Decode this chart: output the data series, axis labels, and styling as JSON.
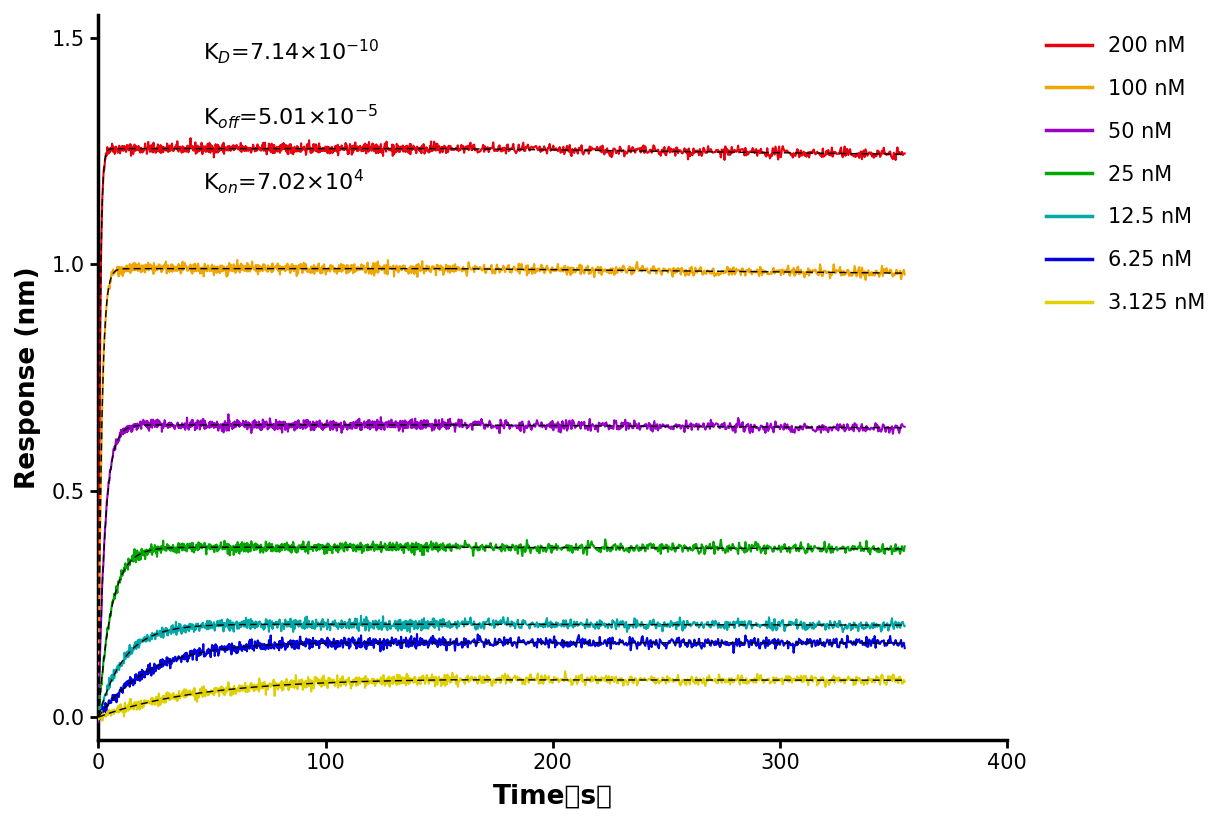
{
  "xlabel": "Time（s）",
  "ylabel": "Response (nm)",
  "xlim": [
    0,
    400
  ],
  "ylim": [
    -0.05,
    1.55
  ],
  "yticks": [
    0.0,
    0.5,
    1.0,
    1.5
  ],
  "xticks": [
    0,
    100,
    200,
    300,
    400
  ],
  "annotation": {
    "KD": "K$_{D}$=7.14×10$^{-10}$",
    "Koff": "K$_{off}$=5.01×10$^{-5}$",
    "Kon": "K$_{on}$=7.02×10$^{4}$"
  },
  "concentrations": [
    200,
    100,
    50,
    25,
    12.5,
    6.25,
    3.125
  ],
  "colors": [
    "#e8000d",
    "#f0a500",
    "#9b00c9",
    "#00a800",
    "#00a8a8",
    "#0000e0",
    "#e0d000"
  ],
  "plateau_values": [
    1.255,
    0.99,
    0.645,
    0.375,
    0.205,
    0.165,
    0.085
  ],
  "kon": 70200,
  "koff": 5.01e-05,
  "t_assoc": 155,
  "t_total": 355,
  "noise_scale": 0.006,
  "fit_color": "#000000",
  "background_color": "#ffffff",
  "legend_labels": [
    "200 nM",
    "100 nM",
    "50 nM",
    "25 nM",
    "12.5 nM",
    "6.25 nM",
    "3.125 nM"
  ],
  "legend_fontsize": 15,
  "axis_label_fontsize": 19,
  "tick_fontsize": 15,
  "annotation_fontsize": 16
}
